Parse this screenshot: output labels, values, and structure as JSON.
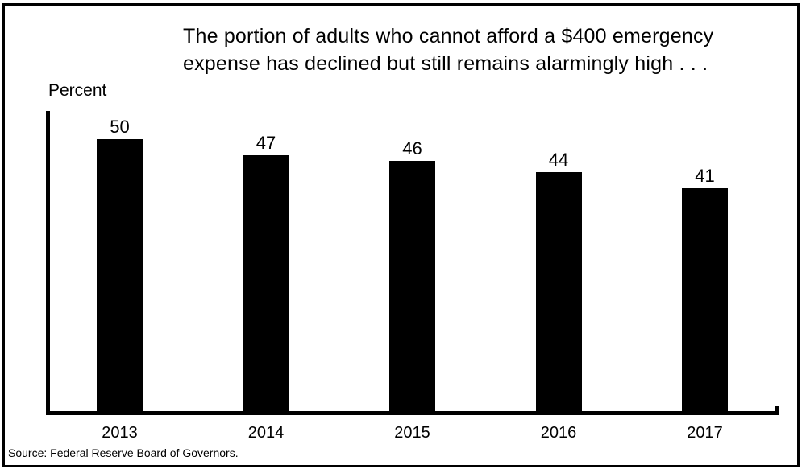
{
  "title": {
    "line1": "The portion of adults who cannot afford a $400 emergency",
    "line2": "expense has declined but still remains alarmingly high . . ."
  },
  "axis_label": "Percent",
  "source": "Source: Federal Reserve Board of Governors.",
  "colors": {
    "bar": "#000000",
    "background": "#ffffff",
    "border": "#000000",
    "text": "#000000"
  },
  "chart_data": {
    "type": "bar",
    "categories": [
      "2013",
      "2014",
      "2015",
      "2016",
      "2017"
    ],
    "values": [
      50,
      47,
      46,
      44,
      41
    ],
    "title": "The portion of adults who cannot afford a $400 emergency expense has declined but still remains alarmingly high . . .",
    "xlabel": "",
    "ylabel": "Percent",
    "ylim": [
      0,
      55
    ],
    "grid": false,
    "legend": false,
    "data_labels": true,
    "source": "Source: Federal Reserve Board of Governors."
  }
}
